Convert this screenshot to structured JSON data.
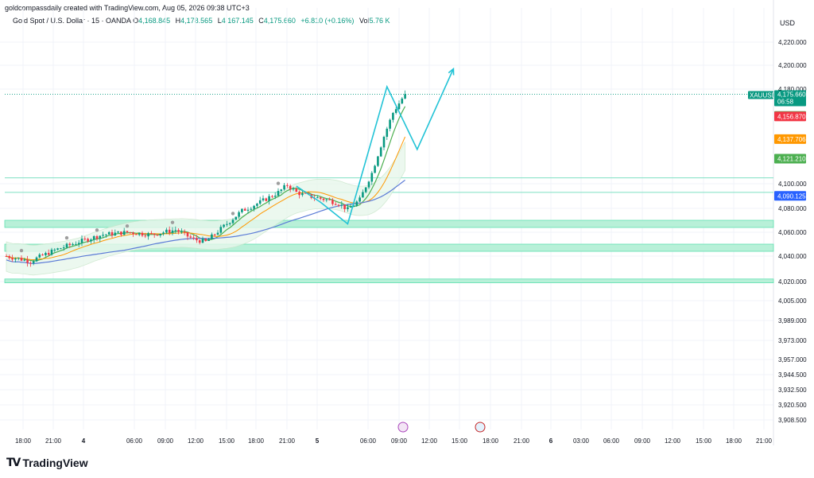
{
  "attribution": "goldcompassdaily created with TradingView.com, Aug 05, 2026 09:38 UTC+3",
  "symbol": {
    "name": "Gold Spot / U.S. Dollar · 15 · OANDA",
    "open_label": "O",
    "open": "4,168.845",
    "high_label": "H",
    "high": "4,178.565",
    "low_label": "L",
    "low": "4,167.145",
    "close_label": "C",
    "close": "4,175.660",
    "change": "+6.810 (+0.16%)",
    "vol_label": "Vol",
    "vol": "5.76 K"
  },
  "currency": "USD",
  "logo": {
    "mark": "TV",
    "text": "TradingView"
  },
  "colors": {
    "up": "#089981",
    "down": "#f23645",
    "accent": "#22c3d6",
    "zone": "#b8f0d8",
    "zone_border": "#5ee0b0",
    "ma_fast": "#4caf50",
    "ma_mid": "#ff9800",
    "ma_slow": "#5b7bd6",
    "price_tag_teal": "#089981",
    "price_tag_green": "#4caf50",
    "price_tag_red": "#f23645",
    "price_tag_orange": "#ff9800",
    "price_tag_blue": "#2962ff"
  },
  "chart_data": {
    "type": "candlestick",
    "y_axis": {
      "scale": "nonlinear",
      "ticks": [
        4220,
        4200,
        4180,
        4157.321,
        4137.706,
        4121.21,
        4100,
        4090.125,
        4080,
        4060,
        4040,
        4020,
        4005,
        3989,
        3973,
        3957,
        3944.5,
        3932.5,
        3920.5,
        3908.5
      ],
      "tick_labels": [
        "4,220.000",
        "4,200.000",
        "4,180.000",
        "4,100.000",
        "4,080.000",
        "4,060.000",
        "4,040.000",
        "4,020.000",
        "4,005.000",
        "3,989.000",
        "3,973.000",
        "3,957.000",
        "3,944.500",
        "3,932.500",
        "3,920.500",
        "3,908.500"
      ],
      "tick_values": [
        4220,
        4200,
        4180,
        4100,
        4080,
        4060,
        4040,
        4020,
        4005,
        3989,
        3973,
        3957,
        3944.5,
        3932.5,
        3920.5,
        3908.5
      ]
    },
    "x_axis": {
      "tick_labels": [
        "18:00",
        "21:00",
        "4",
        "06:00",
        "09:00",
        "12:00",
        "15:00",
        "18:00",
        "21:00",
        "5",
        "06:00",
        "09:00",
        "12:00",
        "15:00",
        "18:00",
        "21:00",
        "6",
        "03:00",
        "06:00",
        "09:00",
        "12:00",
        "15:00",
        "18:00",
        "21:00"
      ]
    },
    "price_labels": [
      {
        "label": "XAUUSD",
        "value": "4,175.660",
        "sub": "06:58",
        "color": "#089981"
      },
      {
        "value": "4,157.321",
        "color": "#4caf50",
        "text_color": "#131722"
      },
      {
        "value": "4,156.870",
        "color": "#f23645"
      },
      {
        "value": "4,137.706",
        "color": "#ff9800",
        "text_color": "#131722"
      },
      {
        "value": "4,121.210",
        "color": "#4caf50"
      },
      {
        "value": "4,090.125",
        "color": "#2962ff"
      }
    ],
    "horizontal_levels": [
      4105,
      4093
    ],
    "zones": [
      [
        4064,
        4070
      ],
      [
        4044,
        4050
      ],
      [
        4019,
        4022
      ]
    ],
    "closing_price": 4175.66,
    "projection_path": [
      {
        "t": 96,
        "price": 4098
      },
      {
        "t": 104,
        "price": 4085
      },
      {
        "t": 113,
        "price": 4067
      },
      {
        "t": 126,
        "price": 4182
      },
      {
        "t": 136,
        "price": 4129
      },
      {
        "t": 148,
        "price": 4197
      }
    ]
  }
}
